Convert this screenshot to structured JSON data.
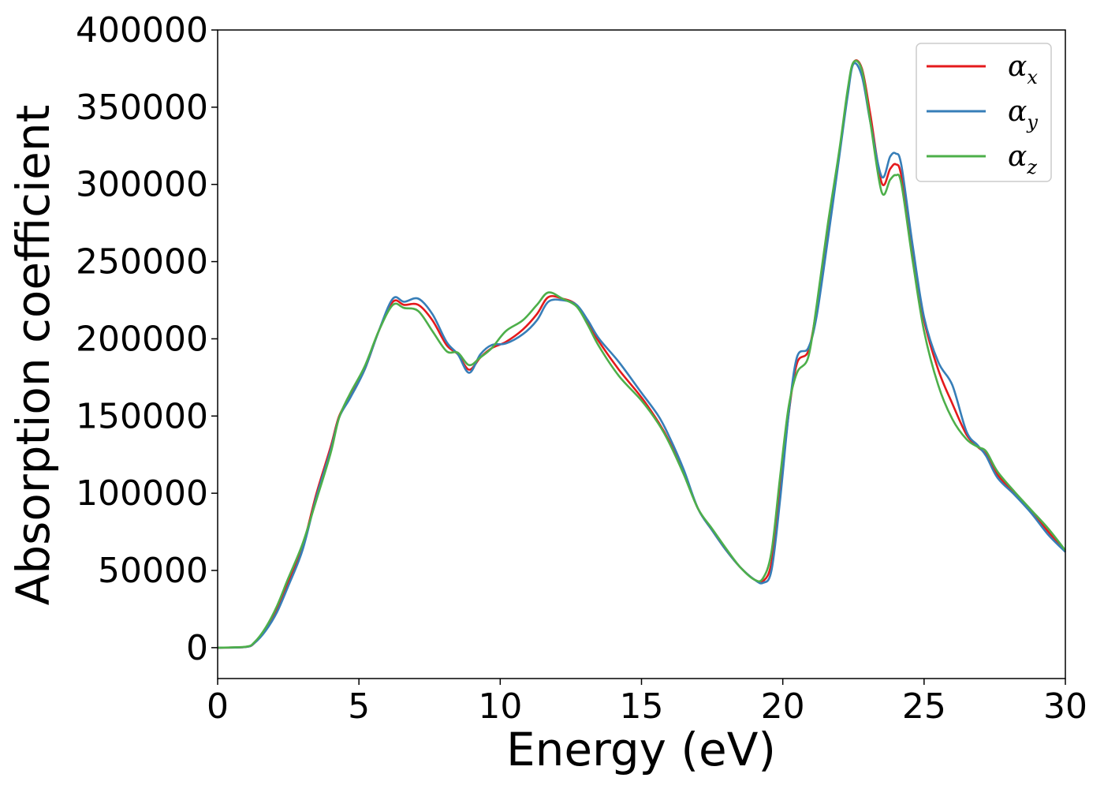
{
  "chart_data": {
    "type": "line",
    "title": "",
    "xlabel": "Energy (eV)",
    "ylabel": "Absorption coefficient",
    "xlim": [
      0,
      30
    ],
    "ylim": [
      -20000,
      400000
    ],
    "xticks": [
      0,
      5,
      10,
      15,
      20,
      25,
      30
    ],
    "xtick_labels": [
      "0",
      "5",
      "10",
      "15",
      "20",
      "25",
      "30"
    ],
    "yticks": [
      0,
      50000,
      100000,
      150000,
      200000,
      250000,
      300000,
      350000,
      400000
    ],
    "ytick_labels": [
      "0",
      "50000",
      "100000",
      "150000",
      "200000",
      "250000",
      "300000",
      "350000",
      "400000"
    ],
    "grid": false,
    "legend_position": "top-right",
    "series": [
      {
        "name": "α_x",
        "symbol": "α",
        "subscript": "x",
        "color": "#e41a1c",
        "points": [
          [
            0,
            0
          ],
          [
            1,
            500
          ],
          [
            1.3,
            3000
          ],
          [
            1.7,
            12000
          ],
          [
            2.1,
            25000
          ],
          [
            2.5,
            42000
          ],
          [
            3,
            65000
          ],
          [
            3.5,
            100000
          ],
          [
            4,
            130000
          ],
          [
            4.3,
            150000
          ],
          [
            4.7,
            163000
          ],
          [
            5.2,
            180000
          ],
          [
            5.7,
            205000
          ],
          [
            6.2,
            224000
          ],
          [
            6.6,
            222000
          ],
          [
            7.1,
            222000
          ],
          [
            7.6,
            212000
          ],
          [
            8.1,
            196000
          ],
          [
            8.5,
            190000
          ],
          [
            8.9,
            180000
          ],
          [
            9.3,
            188000
          ],
          [
            9.7,
            194000
          ],
          [
            10.2,
            198000
          ],
          [
            10.8,
            206000
          ],
          [
            11.3,
            216000
          ],
          [
            11.7,
            227000
          ],
          [
            12.2,
            226000
          ],
          [
            12.7,
            222000
          ],
          [
            13.1,
            210000
          ],
          [
            13.5,
            198000
          ],
          [
            14.2,
            180000
          ],
          [
            15,
            162000
          ],
          [
            15.6,
            146000
          ],
          [
            16,
            133000
          ],
          [
            16.5,
            113000
          ],
          [
            17,
            90000
          ],
          [
            17.5,
            76000
          ],
          [
            18,
            63000
          ],
          [
            18.5,
            52000
          ],
          [
            19,
            44000
          ],
          [
            19.3,
            43000
          ],
          [
            19.6,
            55000
          ],
          [
            19.9,
            100000
          ],
          [
            20.2,
            150000
          ],
          [
            20.5,
            184000
          ],
          [
            20.9,
            192000
          ],
          [
            21.2,
            220000
          ],
          [
            21.6,
            270000
          ],
          [
            22,
            320000
          ],
          [
            22.3,
            360000
          ],
          [
            22.5,
            379000
          ],
          [
            22.8,
            375000
          ],
          [
            23.1,
            345000
          ],
          [
            23.5,
            301000
          ],
          [
            23.8,
            310000
          ],
          [
            24,
            313000
          ],
          [
            24.2,
            305000
          ],
          [
            24.6,
            255000
          ],
          [
            25,
            212000
          ],
          [
            25.5,
            180000
          ],
          [
            26,
            158000
          ],
          [
            26.5,
            138000
          ],
          [
            26.9,
            130000
          ],
          [
            27.2,
            125000
          ],
          [
            27.6,
            112000
          ],
          [
            28.2,
            100000
          ],
          [
            28.8,
            88000
          ],
          [
            29.4,
            75000
          ],
          [
            30,
            62000
          ]
        ]
      },
      {
        "name": "α_y",
        "symbol": "α",
        "subscript": "y",
        "color": "#377eb8",
        "points": [
          [
            0,
            0
          ],
          [
            1,
            500
          ],
          [
            1.3,
            3000
          ],
          [
            1.7,
            11000
          ],
          [
            2.1,
            23000
          ],
          [
            2.5,
            40000
          ],
          [
            3,
            63000
          ],
          [
            3.5,
            98000
          ],
          [
            4,
            128000
          ],
          [
            4.3,
            149000
          ],
          [
            4.7,
            162000
          ],
          [
            5.2,
            180000
          ],
          [
            5.7,
            205000
          ],
          [
            6.2,
            226000
          ],
          [
            6.6,
            224000
          ],
          [
            7.1,
            226000
          ],
          [
            7.6,
            216000
          ],
          [
            8.1,
            198000
          ],
          [
            8.5,
            190000
          ],
          [
            8.9,
            178000
          ],
          [
            9.3,
            190000
          ],
          [
            9.7,
            196000
          ],
          [
            10.2,
            197000
          ],
          [
            10.8,
            203000
          ],
          [
            11.3,
            212000
          ],
          [
            11.7,
            224000
          ],
          [
            12.2,
            225000
          ],
          [
            12.7,
            222000
          ],
          [
            13.1,
            212000
          ],
          [
            13.5,
            200000
          ],
          [
            14.2,
            185000
          ],
          [
            15,
            165000
          ],
          [
            15.6,
            150000
          ],
          [
            16,
            136000
          ],
          [
            16.5,
            115000
          ],
          [
            17,
            90000
          ],
          [
            17.5,
            76000
          ],
          [
            18,
            63000
          ],
          [
            18.5,
            52000
          ],
          [
            19,
            44000
          ],
          [
            19.3,
            42000
          ],
          [
            19.6,
            50000
          ],
          [
            19.9,
            95000
          ],
          [
            20.2,
            150000
          ],
          [
            20.5,
            188000
          ],
          [
            20.9,
            194000
          ],
          [
            21.2,
            215000
          ],
          [
            21.6,
            265000
          ],
          [
            22,
            318000
          ],
          [
            22.3,
            358000
          ],
          [
            22.5,
            378000
          ],
          [
            22.8,
            370000
          ],
          [
            23.1,
            340000
          ],
          [
            23.5,
            305000
          ],
          [
            23.8,
            318000
          ],
          [
            24,
            320000
          ],
          [
            24.2,
            312000
          ],
          [
            24.6,
            260000
          ],
          [
            25,
            214000
          ],
          [
            25.5,
            185000
          ],
          [
            26,
            170000
          ],
          [
            26.5,
            140000
          ],
          [
            26.9,
            131000
          ],
          [
            27.2,
            124000
          ],
          [
            27.6,
            110000
          ],
          [
            28.2,
            99000
          ],
          [
            28.8,
            87000
          ],
          [
            29.4,
            73000
          ],
          [
            30,
            62000
          ]
        ]
      },
      {
        "name": "α_z",
        "symbol": "α",
        "subscript": "z",
        "color": "#4daf4a",
        "points": [
          [
            0,
            0
          ],
          [
            1,
            600
          ],
          [
            1.3,
            3500
          ],
          [
            1.7,
            13000
          ],
          [
            2.1,
            27000
          ],
          [
            2.5,
            45000
          ],
          [
            3,
            67000
          ],
          [
            3.5,
            96000
          ],
          [
            4,
            126000
          ],
          [
            4.3,
            149000
          ],
          [
            4.7,
            165000
          ],
          [
            5.2,
            182000
          ],
          [
            5.7,
            205000
          ],
          [
            6.2,
            222000
          ],
          [
            6.6,
            220000
          ],
          [
            7.1,
            218000
          ],
          [
            7.6,
            205000
          ],
          [
            8.1,
            192000
          ],
          [
            8.5,
            191000
          ],
          [
            8.9,
            183000
          ],
          [
            9.3,
            188000
          ],
          [
            9.7,
            194000
          ],
          [
            10.2,
            205000
          ],
          [
            10.8,
            212000
          ],
          [
            11.3,
            222000
          ],
          [
            11.7,
            230000
          ],
          [
            12.2,
            226000
          ],
          [
            12.7,
            221000
          ],
          [
            13.1,
            209000
          ],
          [
            13.5,
            195000
          ],
          [
            14.2,
            176000
          ],
          [
            15,
            160000
          ],
          [
            15.6,
            145000
          ],
          [
            16,
            132000
          ],
          [
            16.5,
            112000
          ],
          [
            17,
            90000
          ],
          [
            17.5,
            77000
          ],
          [
            18,
            64000
          ],
          [
            18.5,
            52000
          ],
          [
            19,
            44000
          ],
          [
            19.3,
            45000
          ],
          [
            19.6,
            62000
          ],
          [
            19.9,
            110000
          ],
          [
            20.2,
            155000
          ],
          [
            20.5,
            178000
          ],
          [
            20.9,
            188000
          ],
          [
            21.2,
            222000
          ],
          [
            21.6,
            275000
          ],
          [
            22,
            322000
          ],
          [
            22.3,
            362000
          ],
          [
            22.5,
            379000
          ],
          [
            22.8,
            374000
          ],
          [
            23.1,
            340000
          ],
          [
            23.5,
            295000
          ],
          [
            23.8,
            303000
          ],
          [
            24,
            306000
          ],
          [
            24.2,
            300000
          ],
          [
            24.6,
            250000
          ],
          [
            25,
            205000
          ],
          [
            25.5,
            170000
          ],
          [
            26,
            148000
          ],
          [
            26.5,
            135000
          ],
          [
            26.9,
            130000
          ],
          [
            27.2,
            127000
          ],
          [
            27.6,
            114000
          ],
          [
            28.2,
            101000
          ],
          [
            28.8,
            89000
          ],
          [
            29.4,
            77000
          ],
          [
            30,
            63000
          ]
        ]
      }
    ]
  }
}
